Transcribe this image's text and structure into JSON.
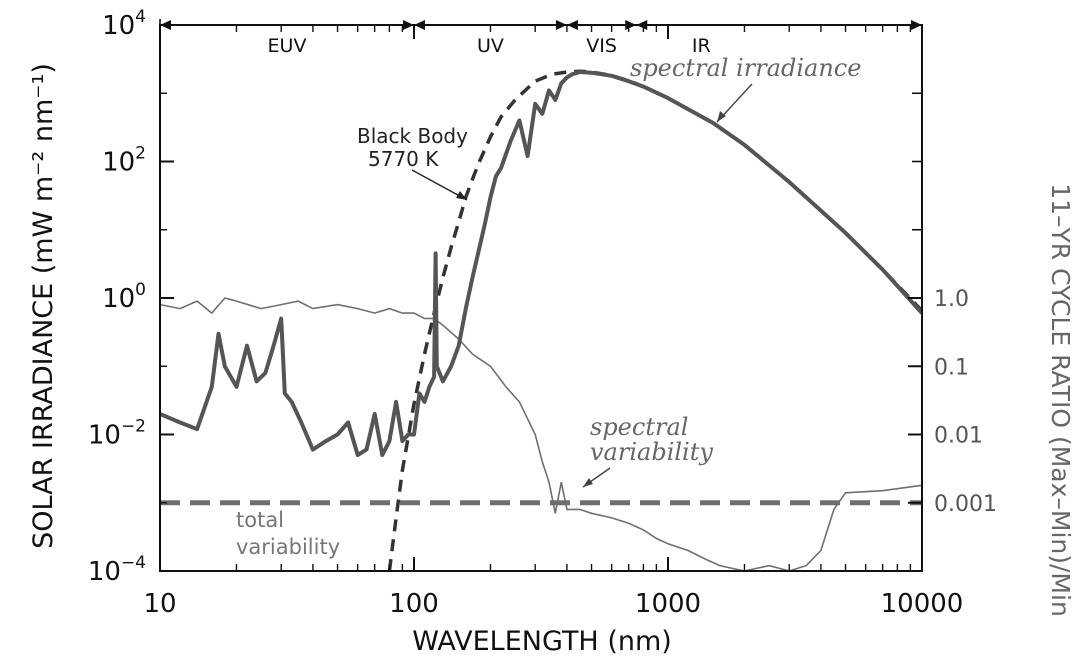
{
  "chart_data": {
    "type": "line",
    "xlabel": "WAVELENGTH (nm)",
    "ylabel": "SOLAR IRRADIANCE (mW m⁻² nm⁻¹)",
    "ylabel_right": "11–YR CYCLE RATIO (Max–Min)/Min",
    "x_scale": "log",
    "y_scale": "log",
    "xlim": [
      10,
      10000
    ],
    "ylim": [
      0.0001,
      10000
    ],
    "x_ticks": [
      {
        "value": 10,
        "label": "10"
      },
      {
        "value": 100,
        "label": "100"
      },
      {
        "value": 1000,
        "label": "1000"
      },
      {
        "value": 10000,
        "label": "10000"
      }
    ],
    "y_ticks": [
      {
        "value": 0.0001,
        "base": "10",
        "exp": "−4"
      },
      {
        "value": 0.01,
        "base": "10",
        "exp": "−2"
      },
      {
        "value": 1,
        "base": "10",
        "exp": "0"
      },
      {
        "value": 100,
        "base": "10",
        "exp": "2"
      },
      {
        "value": 10000,
        "base": "10",
        "exp": "4"
      }
    ],
    "y_right_ticks": [
      {
        "ratio": 1.0,
        "label": "1.0"
      },
      {
        "ratio": 0.1,
        "label": "0.1"
      },
      {
        "ratio": 0.01,
        "label": "0.01"
      },
      {
        "ratio": 0.001,
        "label": "0.001"
      }
    ],
    "regions": [
      {
        "label": "EUV",
        "from": 10,
        "to": 100
      },
      {
        "label": "UV",
        "from": 100,
        "to": 400
      },
      {
        "label": "VIS",
        "from": 400,
        "to": 750
      },
      {
        "label": "IR",
        "from": 750,
        "to": 10000
      }
    ],
    "annotations": {
      "black_body": [
        "Black Body",
        "5770 K"
      ],
      "spectral_irradiance": "spectral irradiance",
      "spectral_variability": [
        "spectral",
        "variability"
      ],
      "total_variability": [
        "total",
        "variability"
      ]
    },
    "series": [
      {
        "key": "black_body",
        "style": "dashed",
        "x": [
          80,
          85,
          90,
          100,
          110,
          120,
          130,
          140,
          150,
          160,
          170,
          180,
          200,
          220,
          250,
          300,
          350,
          400,
          450,
          500,
          600,
          700,
          800,
          1000,
          1500,
          2000,
          3000,
          5000,
          7000,
          10000
        ],
        "y": [
          0.0001,
          0.0006,
          0.003,
          0.028,
          0.15,
          0.6,
          2.0,
          5.5,
          13,
          30,
          55,
          95,
          230,
          450,
          800,
          1500,
          1900,
          2050,
          2100,
          2050,
          1820,
          1520,
          1250,
          850,
          370,
          175,
          50,
          9,
          2.6,
          0.65
        ]
      },
      {
        "key": "spectral_irradiance",
        "style": "solid-thick",
        "x": [
          10,
          12,
          14,
          16,
          17,
          18,
          20,
          22,
          24,
          26,
          28,
          30,
          31,
          33,
          36,
          40,
          45,
          50,
          55,
          60,
          65,
          70,
          75,
          80,
          85,
          90,
          95,
          100,
          105,
          110,
          115,
          120,
          121.6,
          123,
          130,
          140,
          150,
          160,
          170,
          180,
          190,
          200,
          210,
          220,
          240,
          260,
          280,
          300,
          320,
          340,
          360,
          380,
          400,
          420,
          450,
          500,
          600,
          700,
          800,
          1000,
          1500,
          2000,
          3000,
          5000,
          7000,
          10000
        ],
        "y": [
          0.02,
          0.015,
          0.012,
          0.05,
          0.3,
          0.1,
          0.05,
          0.2,
          0.06,
          0.08,
          0.2,
          0.5,
          0.04,
          0.03,
          0.015,
          0.006,
          0.008,
          0.01,
          0.015,
          0.005,
          0.006,
          0.02,
          0.005,
          0.008,
          0.03,
          0.008,
          0.01,
          0.01,
          0.04,
          0.03,
          0.05,
          0.07,
          4.5,
          0.1,
          0.06,
          0.1,
          0.2,
          0.7,
          2,
          5,
          12,
          30,
          60,
          80,
          200,
          400,
          120,
          700,
          500,
          1100,
          800,
          1400,
          1700,
          1900,
          2050,
          2000,
          1800,
          1500,
          1250,
          850,
          370,
          175,
          50,
          9,
          2.6,
          0.6
        ]
      },
      {
        "key": "spectral_variability",
        "style": "solid-thin",
        "x": [
          10,
          12,
          14,
          16,
          18,
          20,
          25,
          30,
          35,
          40,
          50,
          60,
          70,
          80,
          90,
          100,
          110,
          120,
          130,
          150,
          170,
          200,
          230,
          260,
          300,
          320,
          340,
          360,
          380,
          400,
          450,
          500,
          600,
          700,
          800,
          900,
          1000,
          1200,
          1400,
          1600,
          2000,
          2500,
          3000,
          3500,
          4000,
          4500,
          5000,
          7000,
          10000
        ],
        "y": [
          0.8,
          0.7,
          0.9,
          0.6,
          1.0,
          0.9,
          0.7,
          0.8,
          0.9,
          0.7,
          0.8,
          0.7,
          0.6,
          0.7,
          0.6,
          0.6,
          0.5,
          0.5,
          0.4,
          0.25,
          0.15,
          0.1,
          0.05,
          0.03,
          0.01,
          0.004,
          0.002,
          0.0007,
          0.002,
          0.0008,
          0.0008,
          0.0007,
          0.0006,
          0.0005,
          0.0004,
          0.0003,
          0.00025,
          0.0002,
          0.00015,
          0.00012,
          0.0001,
          0.00012,
          0.0001,
          0.00012,
          0.0002,
          0.0008,
          0.0014,
          0.0015,
          0.0018
        ]
      },
      {
        "key": "total_variability",
        "style": "dashed-thick",
        "x": [
          10,
          10000
        ],
        "y": [
          0.001,
          0.001
        ]
      }
    ]
  }
}
